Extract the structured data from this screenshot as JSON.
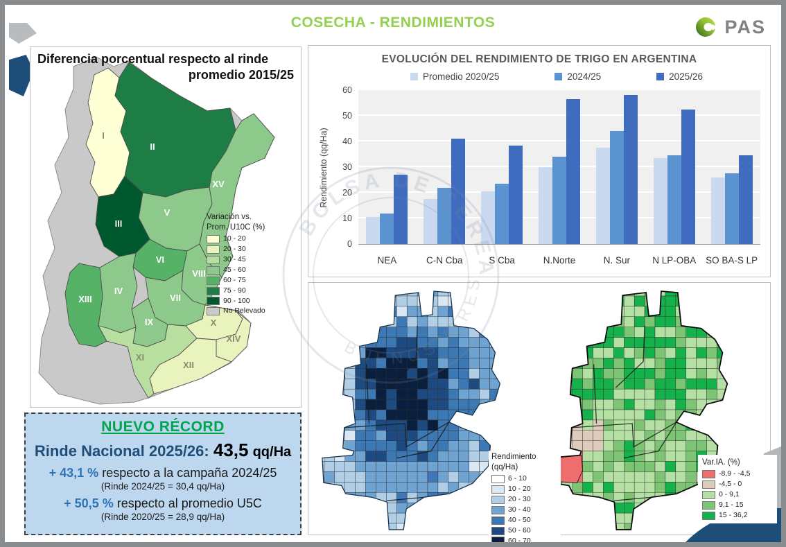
{
  "header": {
    "title": "COSECHA - RENDIMIENTOS",
    "logo_text": "PAS"
  },
  "left_map": {
    "title_line1": "Diferencia porcentual respecto al rinde",
    "title_line2": "promedio 2015/25",
    "legend_title_line1": "Variación vs.",
    "legend_title_line2": "Prom. U10C (%)",
    "legend_items": [
      {
        "label": "10 - 20",
        "color": "#ffffd6"
      },
      {
        "label": "20 - 30",
        "color": "#e9f3bd"
      },
      {
        "label": "30 - 45",
        "color": "#b9dfa0"
      },
      {
        "label": "45 - 60",
        "color": "#8cc98a"
      },
      {
        "label": "60 - 75",
        "color": "#55b267"
      },
      {
        "label": "75 - 90",
        "color": "#1e7d44"
      },
      {
        "label": "90 - 100",
        "color": "#00592e"
      },
      {
        "label": "No Relevado",
        "color": "#c9c9c9"
      }
    ],
    "region_labels": [
      "I",
      "II",
      "XV",
      "V",
      "III",
      "VI",
      "VIII",
      "XIII",
      "IV",
      "VII",
      "IX",
      "X",
      "XIV",
      "XI",
      "XII"
    ]
  },
  "record_box": {
    "title": "NUEVO RÉCORD",
    "line1_label": "Rinde Nacional 2025/26:",
    "line1_value": "43,5",
    "line1_unit": "qq/Ha",
    "line2_pct": "+ 43,1 %",
    "line2_text": "respecto a la campaña 2024/25",
    "line2_note": "(Rinde 2024/25 = 30,4 qq/Ha)",
    "line3_pct": "+ 50,5 %",
    "line3_text": "respecto al promedio U5C",
    "line3_note": "(Rinde 2020/25 = 28,9 qq/Ha)"
  },
  "chart_data": {
    "type": "bar",
    "title": "EVOLUCIÓN DEL RENDIMIENTO DE TRIGO EN ARGENTINA",
    "ylabel": "Rendimiento (qq/Ha)",
    "ylim": [
      0,
      60
    ],
    "ytick_step": 10,
    "grid": true,
    "legend_position": "top",
    "categories": [
      "NEA",
      "C-N Cba",
      "S Cba",
      "N.Norte",
      "N. Sur",
      "N LP-OBA",
      "SO BA-S LP"
    ],
    "series": [
      {
        "name": "Promedio 2020/25",
        "color": "#c9d9ef",
        "values": [
          10.5,
          17.5,
          20.5,
          30,
          37.5,
          33.5,
          26
        ]
      },
      {
        "name": "2024/25",
        "color": "#5b93d1",
        "values": [
          12,
          22,
          23.5,
          34,
          44,
          34.5,
          27.5
        ]
      },
      {
        "name": "2025/26",
        "color": "#3f6cbf",
        "values": [
          27,
          41,
          38.5,
          56.5,
          58,
          52.5,
          34.5
        ]
      }
    ]
  },
  "yield_map": {
    "legend_title_line1": "Rendimiento",
    "legend_title_line2": "(qq/Ha)",
    "legend_items": [
      {
        "label": "6 - 10",
        "color": "#ffffff"
      },
      {
        "label": "10 - 20",
        "color": "#dae8f4"
      },
      {
        "label": "20 - 30",
        "color": "#b0cfe7"
      },
      {
        "label": "30 - 40",
        "color": "#6fa3d2"
      },
      {
        "label": "40 - 50",
        "color": "#3c78b4"
      },
      {
        "label": "50 - 60",
        "color": "#1d4a80"
      },
      {
        "label": "60 - 70",
        "color": "#0a1f3d"
      }
    ]
  },
  "variation_map": {
    "legend_title": "Var.IA. (%)",
    "legend_items": [
      {
        "label": "-8,9 - -4,5",
        "color": "#ee6e6e"
      },
      {
        "label": "-4,5 - 0",
        "color": "#ddcbbc"
      },
      {
        "label": "0 - 9,1",
        "color": "#b4e0a4"
      },
      {
        "label": "9,1 - 15",
        "color": "#7dc474"
      },
      {
        "label": "15 - 36,2",
        "color": "#15b14a"
      }
    ]
  },
  "watermark": {
    "text_top": "BOLSA DE CEREALES",
    "text_bottom": "BUENOS AIRES"
  }
}
